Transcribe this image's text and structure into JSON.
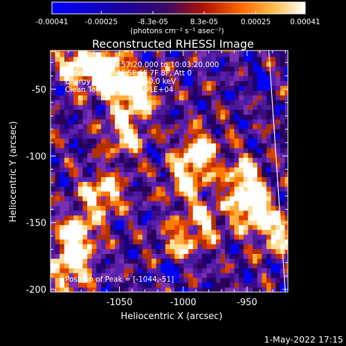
{
  "colorbar": {
    "tick_labels": [
      "-0.00041",
      "-0.00025",
      "-8.3e-05",
      "8.3e-05",
      "0.00025",
      "0.00041"
    ],
    "tick_values": [
      -0.00041,
      -0.00025,
      -8.3e-05,
      8.3e-05,
      0.00025,
      0.00041
    ],
    "range": [
      -0.00041,
      0.00041
    ],
    "units": "(photons cm⁻² s⁻¹ asec⁻²)"
  },
  "annotations": {
    "time": "12-Jul-2004 09:57:20.000 to 10:03:20.000",
    "detectors": "Detectors: 3F 4F 5F 6F 7F 8F, Att 0",
    "energy": "Energy Range: 25.0 - 50.0 keV",
    "clean": "Clean    Total Counts: 1.01E+04",
    "peak": "Position of Peak = [-1044,-51]"
  },
  "footer": {
    "date": "1-May-2022 17:15"
  },
  "chart_data": {
    "type": "heatmap",
    "title": "Reconstructed RHESSI Image",
    "xlabel": "Heliocentric X (arcsec)",
    "ylabel": "Heliocentric Y (arcsec)",
    "xlim": [
      -1104,
      -918
    ],
    "ylim": [
      -202,
      -21
    ],
    "x_ticks": [
      -1050,
      -1000,
      -950
    ],
    "x_tick_labels": [
      "-1050",
      "-1000",
      "-950"
    ],
    "y_ticks": [
      -50,
      -100,
      -150,
      -200
    ],
    "y_tick_labels": [
      "-50",
      "-100",
      "-150",
      "-200"
    ],
    "colormap": [
      "#0000ff",
      "#1a0078",
      "#2a0058",
      "#3e0a80",
      "#4b1a9a",
      "#5a1fb0",
      "#7a2fb0",
      "#b03000",
      "#e04000",
      "#ff7a00",
      "#ffb040",
      "#ffe0a0",
      "#ffffff"
    ],
    "limb_curve_points": [
      [
        -933,
        -21
      ],
      [
        -926,
        -115
      ],
      [
        -920,
        -202
      ]
    ],
    "hot_regions": [
      {
        "x": -1062,
        "y": -40,
        "level": 1.0
      },
      {
        "x": -1040,
        "y": -55,
        "level": 0.9
      },
      {
        "x": -1085,
        "y": -32,
        "level": 0.75
      },
      {
        "x": -1048,
        "y": -85,
        "level": 0.65
      },
      {
        "x": -990,
        "y": -98,
        "level": 0.75
      },
      {
        "x": -1065,
        "y": -130,
        "level": 0.75
      },
      {
        "x": -1000,
        "y": -120,
        "level": 0.6
      },
      {
        "x": -955,
        "y": -118,
        "level": 0.65
      },
      {
        "x": -948,
        "y": -140,
        "level": 0.85
      },
      {
        "x": -928,
        "y": -160,
        "level": 0.65
      },
      {
        "x": -1085,
        "y": -160,
        "level": 0.75
      },
      {
        "x": -1090,
        "y": -185,
        "level": 0.8
      },
      {
        "x": -1005,
        "y": -168,
        "level": 0.5
      },
      {
        "x": -985,
        "y": -150,
        "level": 0.5
      }
    ],
    "cold_regions": [
      {
        "x": -1010,
        "y": -188,
        "level": 0.8
      },
      {
        "x": -945,
        "y": -45,
        "level": 0.6
      }
    ],
    "peak": [
      -1044,
      -51
    ]
  }
}
